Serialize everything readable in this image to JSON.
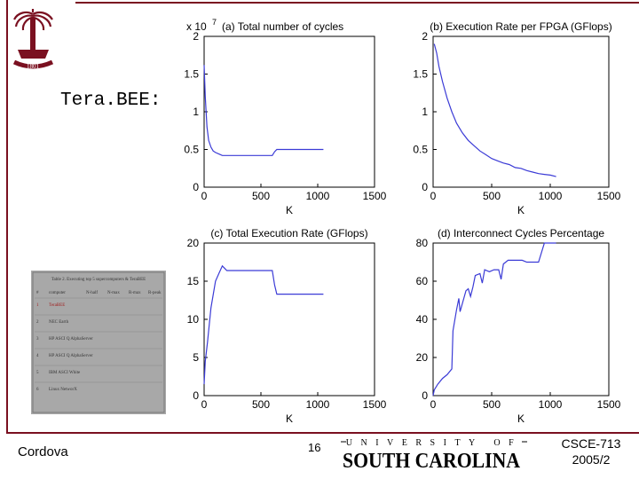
{
  "slide": {
    "heading": "Tera.BEE:",
    "footer_author": "Cordova",
    "page_number": "16",
    "university_top": "UNIVERSITY OF",
    "university_name": "SOUTH CAROLINA",
    "course": "CSCE-713",
    "term": "2005/2",
    "logo_year": "1801"
  },
  "colors": {
    "accent": "#7a1020",
    "line": "#3b3bd6"
  },
  "chart_data": [
    {
      "id": "a",
      "type": "line",
      "title": "(a) Total number of cycles",
      "exponent_label": "x 10",
      "exponent_power": "7",
      "xlabel": "K",
      "ylabel": "",
      "xlim": [
        0,
        1500
      ],
      "ylim": [
        0,
        2
      ],
      "xticks": [
        0,
        500,
        1000,
        1500
      ],
      "yticks": [
        0,
        0.5,
        1,
        1.5,
        2
      ],
      "xtick_labels": [
        "0",
        "500",
        "1000",
        "1500"
      ],
      "ytick_labels": [
        "0",
        "0.5",
        "1",
        "1.5",
        "2"
      ],
      "series": [
        {
          "name": "cycles",
          "x": [
            0,
            10,
            25,
            40,
            60,
            80,
            100,
            130,
            160,
            200,
            300,
            400,
            500,
            600,
            620,
            640,
            700,
            800,
            900,
            1000,
            1050
          ],
          "y": [
            1.62,
            1.2,
            0.8,
            0.62,
            0.53,
            0.48,
            0.46,
            0.44,
            0.42,
            0.42,
            0.42,
            0.42,
            0.42,
            0.42,
            0.47,
            0.5,
            0.5,
            0.5,
            0.5,
            0.5,
            0.5
          ]
        }
      ]
    },
    {
      "id": "b",
      "type": "line",
      "title": "(b) Execution Rate per FPGA (GFlops)",
      "xlabel": "K",
      "ylabel": "",
      "xlim": [
        0,
        1500
      ],
      "ylim": [
        0,
        2
      ],
      "xticks": [
        0,
        500,
        1000,
        1500
      ],
      "yticks": [
        0,
        0.5,
        1,
        1.5,
        2
      ],
      "xtick_labels": [
        "0",
        "500",
        "1000",
        "1500"
      ],
      "ytick_labels": [
        "0",
        "0.5",
        "1",
        "1.5",
        "2"
      ],
      "series": [
        {
          "name": "rate_per_fpga",
          "x": [
            10,
            30,
            50,
            80,
            120,
            160,
            200,
            250,
            300,
            350,
            400,
            450,
            500,
            550,
            600,
            650,
            700,
            750,
            800,
            850,
            900,
            950,
            1000,
            1050
          ],
          "y": [
            1.9,
            1.78,
            1.6,
            1.4,
            1.18,
            1.0,
            0.85,
            0.72,
            0.62,
            0.55,
            0.48,
            0.43,
            0.38,
            0.35,
            0.32,
            0.3,
            0.26,
            0.25,
            0.22,
            0.2,
            0.18,
            0.17,
            0.16,
            0.14
          ]
        }
      ]
    },
    {
      "id": "c",
      "type": "line",
      "title": "(c) Total Execution Rate (GFlops)",
      "xlabel": "K",
      "ylabel": "",
      "xlim": [
        0,
        1500
      ],
      "ylim": [
        0,
        20
      ],
      "xticks": [
        0,
        500,
        1000,
        1500
      ],
      "yticks": [
        0,
        5,
        10,
        15,
        20
      ],
      "xtick_labels": [
        "0",
        "500",
        "1000",
        "1500"
      ],
      "ytick_labels": [
        "0",
        "5",
        "10",
        "15",
        "20"
      ],
      "series": [
        {
          "name": "total_rate",
          "x": [
            0,
            10,
            30,
            60,
            100,
            130,
            160,
            200,
            300,
            400,
            500,
            600,
            620,
            640,
            700,
            800,
            900,
            1000,
            1050
          ],
          "y": [
            1.5,
            4.5,
            7.0,
            11.5,
            15.0,
            16.0,
            17.0,
            16.4,
            16.4,
            16.4,
            16.4,
            16.4,
            14.5,
            13.3,
            13.3,
            13.3,
            13.3,
            13.3,
            13.3
          ]
        }
      ]
    },
    {
      "id": "d",
      "type": "line",
      "title": "(d) Interconnect Cycles Percentage",
      "xlabel": "K",
      "ylabel": "",
      "xlim": [
        0,
        1500
      ],
      "ylim": [
        0,
        80
      ],
      "xticks": [
        0,
        500,
        1000,
        1500
      ],
      "yticks": [
        0,
        20,
        40,
        60,
        80
      ],
      "xtick_labels": [
        "0",
        "500",
        "1000",
        "1500"
      ],
      "ytick_labels": [
        "0",
        "20",
        "40",
        "60",
        "80"
      ],
      "series": [
        {
          "name": "interconnect_pct",
          "x": [
            0,
            10,
            40,
            80,
            120,
            160,
            170,
            200,
            220,
            230,
            280,
            300,
            320,
            340,
            360,
            400,
            420,
            440,
            480,
            520,
            560,
            580,
            600,
            640,
            700,
            760,
            800,
            900,
            950,
            1000,
            1050
          ],
          "y": [
            0,
            3,
            6,
            9,
            11,
            14,
            34,
            45,
            51,
            44,
            55,
            56,
            52,
            57,
            63,
            64,
            59,
            66,
            65,
            66,
            66,
            61,
            69,
            71,
            71,
            71,
            70,
            70,
            80,
            80,
            80
          ]
        }
      ]
    }
  ],
  "thumbnail_table": {
    "caption": "Table 2. Executing top 5 supercomputers & TeraBEE",
    "headers": [
      "#",
      "computer",
      "N-half",
      "N-max",
      "R-max",
      "R-peak"
    ],
    "rows": [
      [
        "1",
        "TeraBEE",
        "",
        "",
        "",
        ""
      ],
      [
        "2",
        "NEC Earth",
        "",
        "",
        "",
        ""
      ],
      [
        "3",
        "HP ASCI Q AlphaServer",
        "",
        "",
        "",
        ""
      ],
      [
        "4",
        "HP ASCI Q AlphaServer",
        "",
        "",
        "",
        ""
      ],
      [
        "5",
        "IBM ASCI White",
        "",
        "",
        "",
        ""
      ],
      [
        "6",
        "Linux NetworX",
        "",
        "",
        "",
        ""
      ]
    ]
  }
}
